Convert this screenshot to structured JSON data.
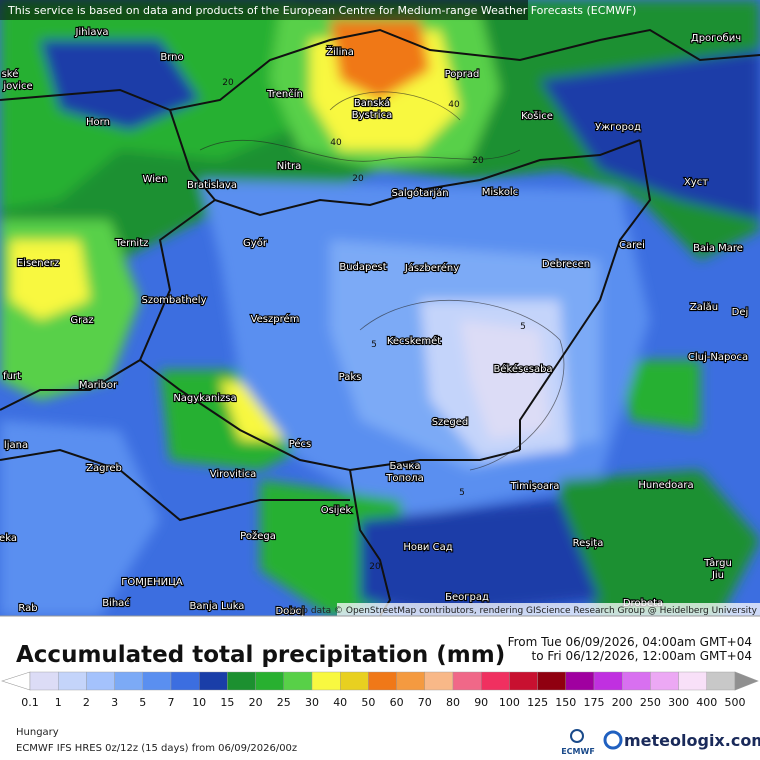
{
  "header": {
    "notice": "This service is based on data and products of the European Centre for Medium-range Weather Forecasts (ECMWF)"
  },
  "map": {
    "attribution": "Map data © OpenStreetMap contributors, rendering GIScience Research Group @ Heidelberg University",
    "cities": [
      "Jihlava",
      "Brno",
      "Žilina",
      "Poprad",
      "Дрогобич",
      "ské",
      "jovice",
      "Trenčín",
      "Banská",
      "Bystrica",
      "Košice",
      "Ужгород",
      "Horn",
      "Nitra",
      "Wien",
      "Bratislava",
      "Salgótarján",
      "Miskolc",
      "Хуст",
      "Ternitz",
      "Győr",
      "Carei",
      "Baia Mare",
      "Eisenerz",
      "Budapest",
      "Jászberény",
      "Debrecen",
      "Szombathely",
      "Zalău",
      "Graz",
      "Veszprém",
      "Dej",
      "Kecskemét",
      "furt",
      "Cluj-Napoca",
      "Békéscsaba",
      "Paks",
      "Maribor",
      "Nagykanizsa",
      "Szeged",
      "Pécs",
      "ljana",
      "Zagreb",
      "Virovitica",
      "Бачка",
      "Топола",
      "Timișoara",
      "Hunedoara",
      "Osijek",
      "Požega",
      "Нови Сад",
      "Reșița",
      "eka",
      "Târgu",
      "Jiu",
      "ГОМЈЕНИЦА",
      "Bihać",
      "Banja Luka",
      "Doboj",
      "Београд",
      "Drobeta",
      "Rab"
    ],
    "contour_labels": [
      "20",
      "40",
      "40",
      "20",
      "20",
      "5",
      "5",
      "5",
      "20"
    ]
  },
  "legend": {
    "title": "Accumulated total precipitation (mm)",
    "period_from": "From Tue 06/09/2026, 04:00am GMT+04",
    "period_to": "to Fri 06/12/2026, 12:00am GMT+04",
    "labels": [
      0.1,
      1,
      2,
      3,
      5,
      7,
      10,
      15,
      20,
      25,
      30,
      40,
      50,
      60,
      70,
      80,
      90,
      100,
      125,
      150,
      175,
      200,
      250,
      300,
      400,
      500
    ],
    "colors": [
      "#dcdcf6",
      "#c4d4fa",
      "#a4c2fc",
      "#7caaf6",
      "#5a8ff0",
      "#3c6ee0",
      "#1a3ea8",
      "#1c9030",
      "#28b030",
      "#58d048",
      "#f8f840",
      "#e8d020",
      "#f07818",
      "#f49a40",
      "#f8b888",
      "#f06888",
      "#f03060",
      "#c81030",
      "#900010",
      "#a000a0",
      "#c030e0",
      "#d870f0",
      "#eca8f4",
      "#f8e0f8",
      "#c8c8c8"
    ],
    "below_color": "#ffffff",
    "above_color": "#909090"
  },
  "footer": {
    "region": "Hungary",
    "model": "ECMWF IFS HRES 0z/12z (15 days) from 06/09/2026/00z",
    "ecmwf_logo": "ECMWF",
    "brand": "meteologix.com"
  }
}
